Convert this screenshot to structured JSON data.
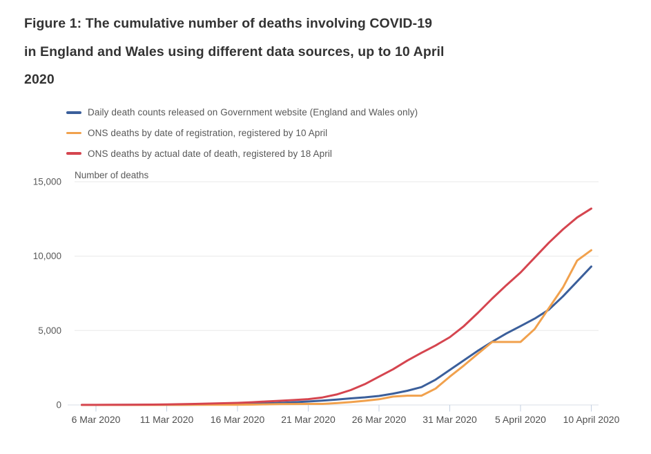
{
  "title": {
    "lines": [
      "Figure 1: The cumulative number of deaths involving COVID-19",
      "in England and Wales using different data sources, up to 10 April",
      "2020"
    ],
    "color": "#333333"
  },
  "legend": {
    "items": [
      {
        "label": "Daily death counts released on Government website (England and Wales only)",
        "color": "#3b5f9b"
      },
      {
        "label": "ONS deaths by date of registration, registered by 10 April",
        "color": "#f1a14d"
      },
      {
        "label": "ONS deaths by actual date of death, registered by 18 April",
        "color": "#d5454f"
      }
    ]
  },
  "chart_data": {
    "type": "line",
    "ylabel": "Number of deaths",
    "xlabel": "",
    "ylim": [
      0,
      15000
    ],
    "grid": "horizontal",
    "legend_position": "top-left",
    "x": [
      "5 Mar 2020",
      "6 Mar 2020",
      "7 Mar 2020",
      "8 Mar 2020",
      "9 Mar 2020",
      "10 Mar 2020",
      "11 Mar 2020",
      "12 Mar 2020",
      "13 Mar 2020",
      "14 Mar 2020",
      "15 Mar 2020",
      "16 Mar 2020",
      "17 Mar 2020",
      "18 Mar 2020",
      "19 Mar 2020",
      "20 Mar 2020",
      "21 Mar 2020",
      "22 Mar 2020",
      "23 Mar 2020",
      "24 Mar 2020",
      "25 Mar 2020",
      "26 Mar 2020",
      "27 Mar 2020",
      "28 Mar 2020",
      "29 Mar 2020",
      "30 Mar 2020",
      "31 Mar 2020",
      "1 April 2020",
      "2 April 2020",
      "3 April 2020",
      "4 April 2020",
      "5 April 2020",
      "6 April 2020",
      "7 April 2020",
      "8 April 2020",
      "9 April 2020",
      "10 April 2020"
    ],
    "x_tick_indices": [
      1,
      6,
      11,
      16,
      21,
      26,
      31,
      36
    ],
    "x_tick_labels": [
      "6 Mar 2020",
      "11 Mar 2020",
      "16 Mar 2020",
      "21 Mar 2020",
      "26 Mar 2020",
      "31 Mar 2020",
      "5 April 2020",
      "10 April 2020"
    ],
    "y_ticks": [
      {
        "value": 0,
        "label": "0"
      },
      {
        "value": 5000,
        "label": "5,000"
      },
      {
        "value": 10000,
        "label": "10,000"
      },
      {
        "value": 15000,
        "label": "15,000"
      }
    ],
    "series": [
      {
        "name": "Daily death counts released on Government website (England and Wales only)",
        "color": "#3b5f9b",
        "values": [
          1,
          2,
          2,
          3,
          5,
          7,
          9,
          12,
          18,
          25,
          40,
          55,
          75,
          105,
          140,
          180,
          230,
          290,
          360,
          440,
          510,
          605,
          760,
          950,
          1200,
          1700,
          2350,
          3000,
          3650,
          4250,
          4800,
          5300,
          5800,
          6400,
          7300,
          8300,
          9300
        ]
      },
      {
        "name": "ONS deaths by date of registration, registered by 10 April",
        "color": "#f1a14d",
        "values": [
          0,
          0,
          0,
          0,
          1,
          2,
          3,
          5,
          8,
          10,
          12,
          15,
          25,
          40,
          55,
          65,
          70,
          70,
          120,
          190,
          280,
          380,
          560,
          620,
          620,
          1100,
          1900,
          2650,
          3450,
          4230,
          4230,
          4230,
          5100,
          6500,
          7900,
          9700,
          10400
        ]
      },
      {
        "name": "ONS deaths by actual date of death, registered by 18 April",
        "color": "#d5454f",
        "values": [
          3,
          5,
          8,
          12,
          18,
          25,
          35,
          50,
          70,
          95,
          115,
          140,
          180,
          230,
          280,
          330,
          390,
          500,
          700,
          1000,
          1400,
          1900,
          2400,
          2980,
          3500,
          4000,
          4550,
          5300,
          6200,
          7150,
          8050,
          8900,
          9900,
          10900,
          11800,
          12600,
          13200
        ]
      }
    ]
  }
}
